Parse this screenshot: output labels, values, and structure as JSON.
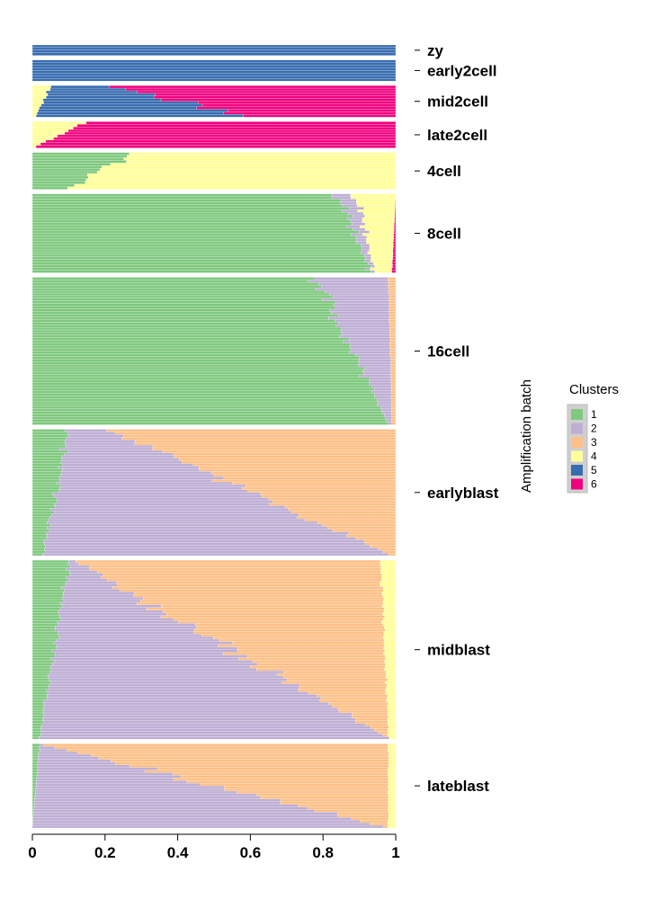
{
  "chart_data": {
    "type": "bar",
    "subtype": "stacked-horizontal-proportion",
    "xlim": [
      0,
      1
    ],
    "x_ticks": [
      "0",
      "0.2",
      "0.4",
      "0.6",
      "0.8",
      "1"
    ],
    "x_tick_values": [
      0,
      0.2,
      0.4,
      0.6,
      0.8,
      1
    ],
    "side_title": "Amplification batch",
    "legend": {
      "title": "Clusters",
      "entries": [
        {
          "label": "1",
          "color": "#7fc97f"
        },
        {
          "label": "2",
          "color": "#beaed4"
        },
        {
          "label": "3",
          "color": "#fdc086"
        },
        {
          "label": "4",
          "color": "#ffff99"
        },
        {
          "label": "5",
          "color": "#386cb0"
        },
        {
          "label": "6",
          "color": "#f0027f"
        }
      ]
    },
    "groups": [
      {
        "name": "zy",
        "rows": 4,
        "start": [
          0,
          0,
          0,
          0,
          1,
          0
        ],
        "end": [
          0,
          0,
          0,
          0,
          1,
          0
        ]
      },
      {
        "name": "early2cell",
        "rows": 8,
        "start": [
          0,
          0,
          0,
          0,
          1,
          0
        ],
        "end": [
          0,
          0,
          0,
          0,
          1,
          0
        ]
      },
      {
        "name": "mid2cell",
        "rows": 12,
        "start": [
          0,
          0,
          0,
          0.05,
          0.17,
          0.78
        ],
        "end": [
          0,
          0,
          0,
          0.01,
          0.57,
          0.42
        ]
      },
      {
        "name": "late2cell",
        "rows": 10,
        "start": [
          0,
          0,
          0,
          0.15,
          0,
          0.85
        ],
        "end": [
          0,
          0,
          0,
          0.01,
          0,
          0.99
        ]
      },
      {
        "name": "4cell",
        "rows": 14,
        "start": [
          0.28,
          0,
          0,
          0.72,
          0,
          0
        ],
        "end": [
          0.1,
          0,
          0,
          0.9,
          0,
          0
        ]
      },
      {
        "name": "8cell",
        "rows": 30,
        "start": [
          0.84,
          0.05,
          0,
          0.11,
          0,
          0
        ],
        "end": [
          0.93,
          0.01,
          0,
          0.05,
          0,
          0.01
        ]
      },
      {
        "name": "16cell",
        "rows": 56,
        "start": [
          0.78,
          0.2,
          0.02,
          0,
          0,
          0
        ],
        "end": [
          0.98,
          0.01,
          0.01,
          0,
          0,
          0
        ]
      },
      {
        "name": "earlyblast",
        "rows": 48,
        "start": [
          0.1,
          0.12,
          0.78,
          0,
          0,
          0
        ],
        "end": [
          0.03,
          0.95,
          0.02,
          0,
          0,
          0
        ]
      },
      {
        "name": "midblast",
        "rows": 68,
        "start": [
          0.1,
          0.02,
          0.84,
          0.04,
          0,
          0
        ],
        "end": [
          0.02,
          0.96,
          0,
          0.02,
          0,
          0
        ]
      },
      {
        "name": "lateblast",
        "rows": 32,
        "start": [
          0.02,
          0.01,
          0.95,
          0.02,
          0,
          0
        ],
        "end": [
          0,
          0.97,
          0.01,
          0.02,
          0,
          0
        ]
      }
    ]
  }
}
